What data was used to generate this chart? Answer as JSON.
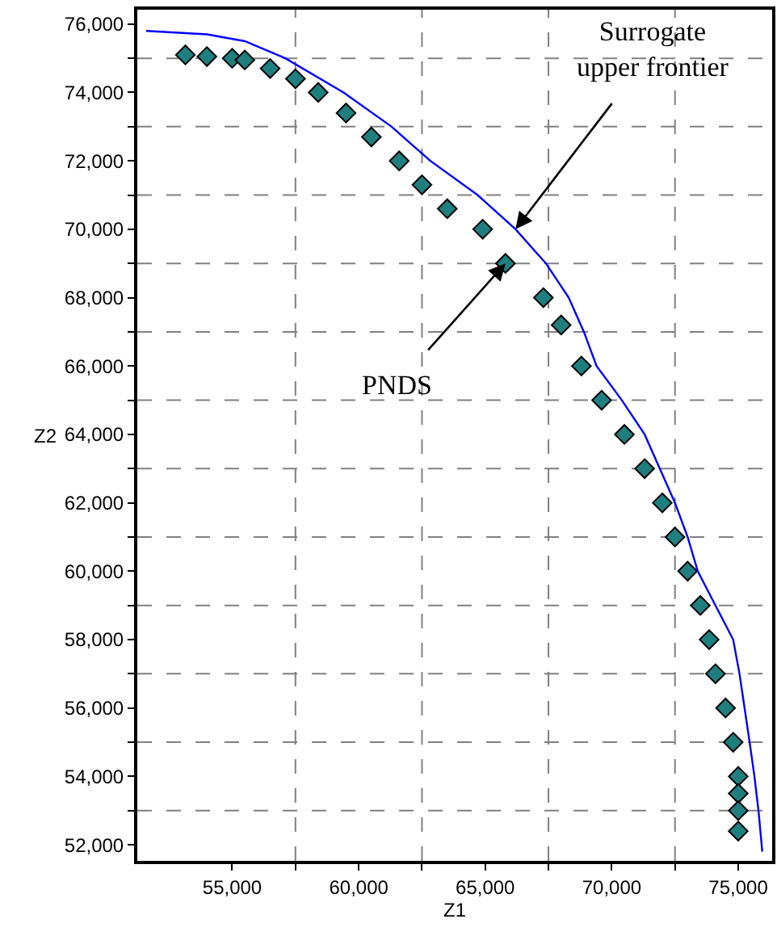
{
  "chart_data": {
    "type": "scatter",
    "xlabel": "Z1",
    "ylabel": "Z2",
    "xlim": [
      51250,
      76340
    ],
    "ylim": [
      51530,
      76420
    ],
    "xticks": [
      {
        "value": 55000,
        "label": "55,000"
      },
      {
        "value": 57500,
        "label": null
      },
      {
        "value": 60000,
        "label": "60,000"
      },
      {
        "value": 62500,
        "label": null
      },
      {
        "value": 65000,
        "label": "65,000"
      },
      {
        "value": 67500,
        "label": null
      },
      {
        "value": 70000,
        "label": "70,000"
      },
      {
        "value": 72500,
        "label": null
      },
      {
        "value": 75000,
        "label": "75,000"
      }
    ],
    "yticks": [
      {
        "value": 52000,
        "label": "52,000"
      },
      {
        "value": 53000,
        "label": null
      },
      {
        "value": 54000,
        "label": "54,000"
      },
      {
        "value": 55000,
        "label": null
      },
      {
        "value": 56000,
        "label": "56,000"
      },
      {
        "value": 57000,
        "label": null
      },
      {
        "value": 58000,
        "label": "58,000"
      },
      {
        "value": 59000,
        "label": null
      },
      {
        "value": 60000,
        "label": "60,000"
      },
      {
        "value": 61000,
        "label": null
      },
      {
        "value": 62000,
        "label": "62,000"
      },
      {
        "value": 63000,
        "label": null
      },
      {
        "value": 64000,
        "label": "64,000"
      },
      {
        "value": 65000,
        "label": null
      },
      {
        "value": 66000,
        "label": "66,000"
      },
      {
        "value": 67000,
        "label": null
      },
      {
        "value": 68000,
        "label": "68,000"
      },
      {
        "value": 69000,
        "label": null
      },
      {
        "value": 70000,
        "label": "70,000"
      },
      {
        "value": 71000,
        "label": null
      },
      {
        "value": 72000,
        "label": "72,000"
      },
      {
        "value": 73000,
        "label": null
      },
      {
        "value": 74000,
        "label": "74,000"
      },
      {
        "value": 75000,
        "label": null
      },
      {
        "value": 76000,
        "label": "76,000"
      }
    ],
    "grid": true,
    "series": [
      {
        "marker": "diamond",
        "color": "#1f7f7f",
        "x": [
          53150,
          54000,
          55000,
          55500,
          56500,
          57500,
          58400,
          59500,
          60500,
          61600,
          62500,
          63500,
          64900,
          65800,
          67300,
          68000,
          68800,
          69600,
          70500,
          71300,
          72000,
          72500,
          73000,
          73500,
          73850,
          74100,
          74500,
          74800,
          75000,
          75000,
          75000,
          75000
        ],
        "values": [
          75100,
          75050,
          75000,
          74950,
          74700,
          74400,
          74000,
          73400,
          72700,
          72000,
          71300,
          70600,
          70000,
          69000,
          68000,
          67200,
          66000,
          65000,
          64000,
          63000,
          62000,
          61000,
          60000,
          59000,
          58000,
          57000,
          56000,
          55000,
          54000,
          53500,
          53000,
          52400
        ]
      },
      {
        "type": "line",
        "marker": "none",
        "line_style": "solid",
        "color": "#0000ff",
        "x": [
          51600,
          54000,
          55500,
          57100,
          59400,
          61300,
          62830,
          64700,
          66200,
          67400,
          68300,
          68900,
          69400,
          70400,
          71300,
          71900,
          72500,
          73000,
          73400,
          74100,
          74800,
          75050,
          75250,
          75450,
          75640,
          75800,
          75950
        ],
        "values": [
          75800,
          75700,
          75500,
          75000,
          74000,
          73000,
          72000,
          71000,
          70000,
          69000,
          68000,
          67000,
          66000,
          65000,
          64000,
          63000,
          62000,
          61000,
          60000,
          59000,
          58000,
          57000,
          56000,
          55000,
          54000,
          53000,
          51800
        ]
      }
    ],
    "annotations": [
      {
        "text": "Surrogate upper frontier",
        "x": 66200,
        "y": 70000
      },
      {
        "text": "PNDS",
        "x": 65800,
        "y": 69000
      }
    ]
  }
}
